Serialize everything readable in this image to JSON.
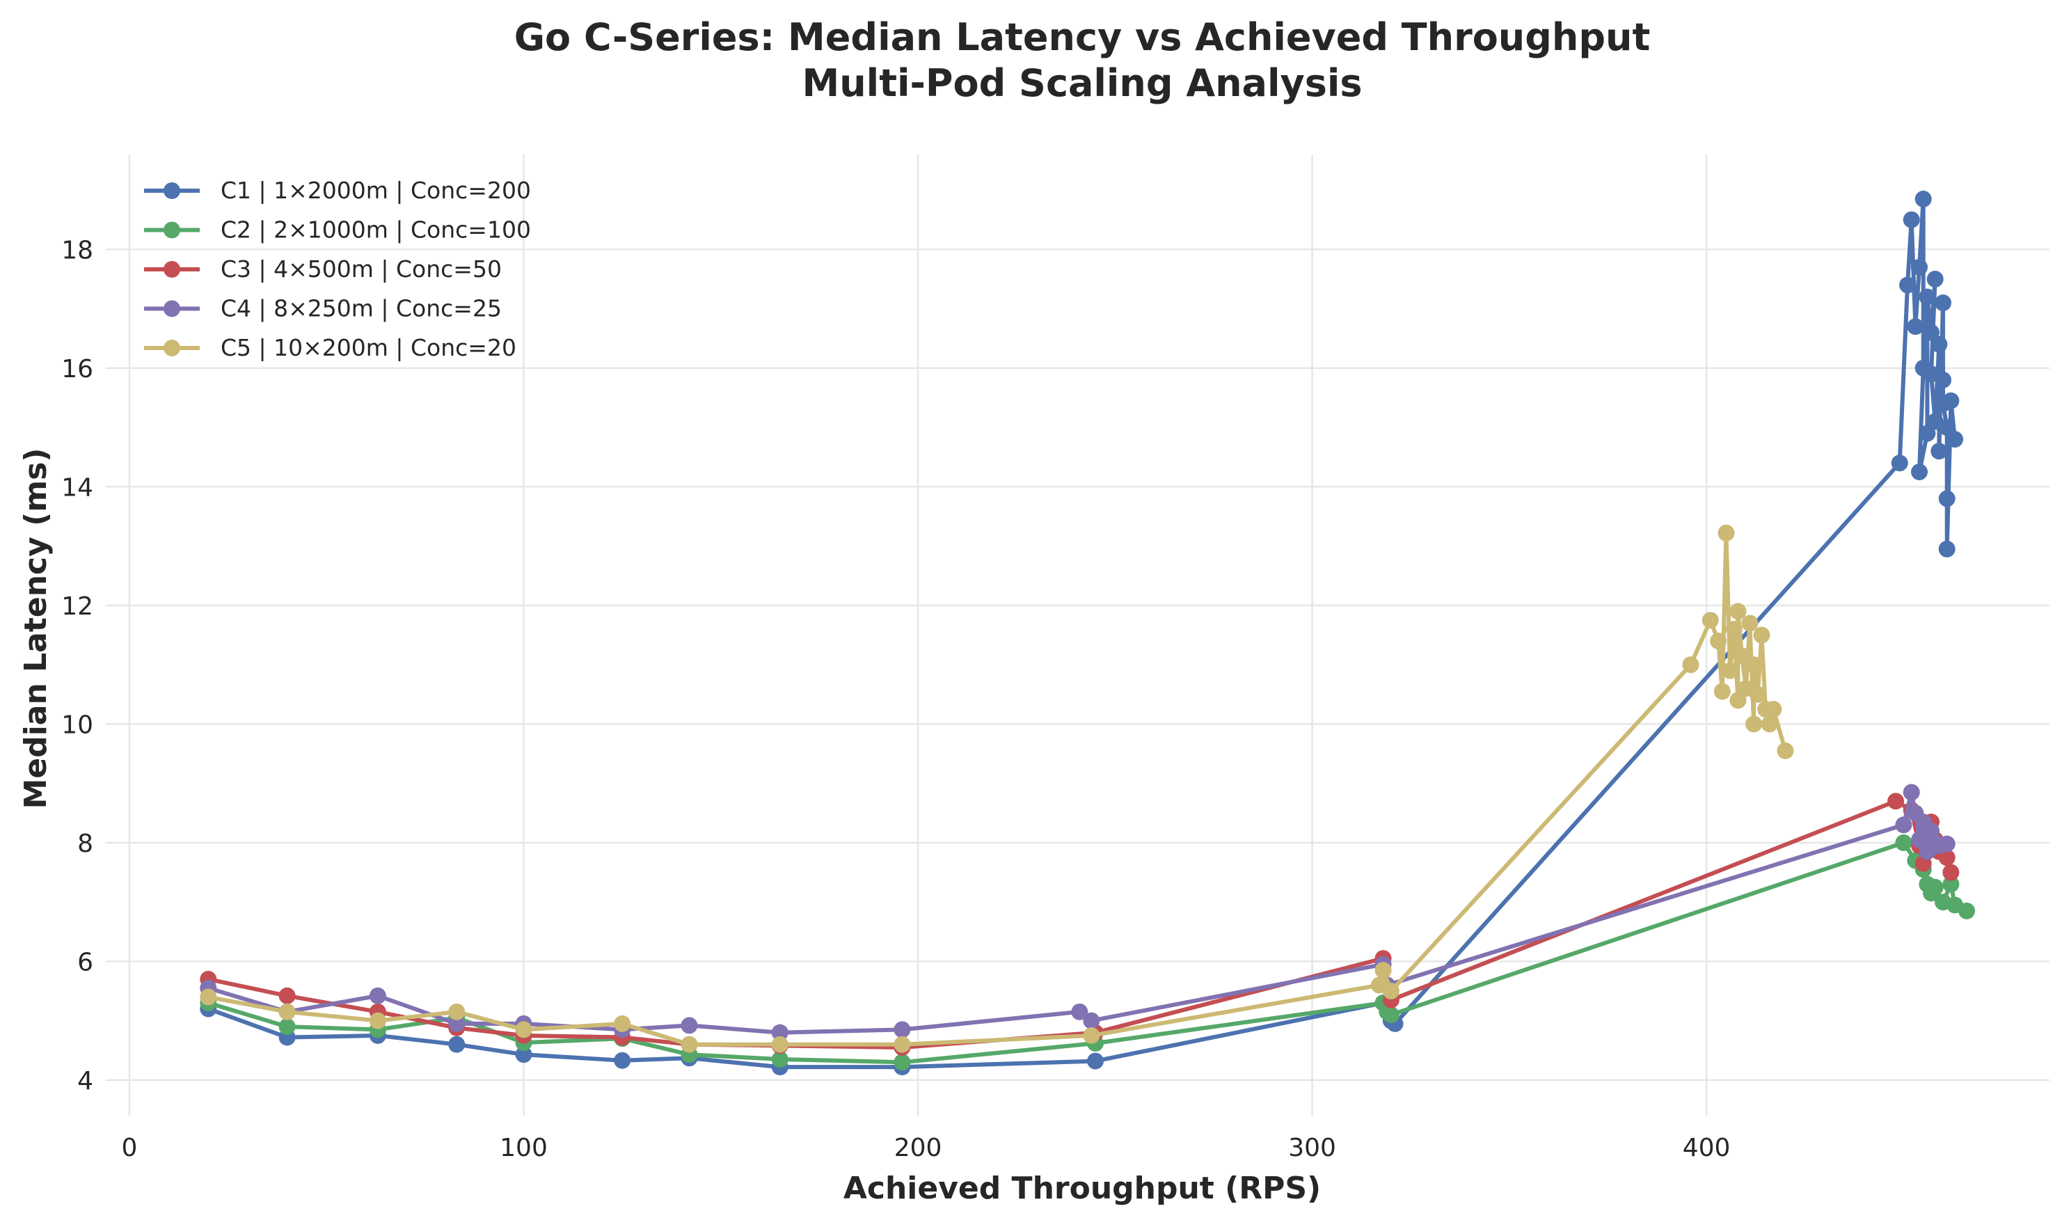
{
  "chart_data": {
    "type": "line",
    "title": "Go C-Series: Median Latency vs Achieved Throughput",
    "subtitle": "Multi-Pod Scaling Analysis",
    "xlabel": "Achieved Throughput (RPS)",
    "ylabel": "Median Latency (ms)",
    "xlim": [
      -6,
      487
    ],
    "ylim": [
      3.4,
      19.6
    ],
    "xticks": [
      0,
      100,
      200,
      300,
      400
    ],
    "yticks": [
      4,
      6,
      8,
      10,
      12,
      14,
      16,
      18
    ],
    "grid": true,
    "legend_position": "top-left",
    "series": [
      {
        "name": "C1 | 1×2000m | Conc=200",
        "color": "#4c72b0",
        "points": [
          [
            20,
            5.2
          ],
          [
            40,
            4.72
          ],
          [
            63,
            4.75
          ],
          [
            83,
            4.6
          ],
          [
            100,
            4.43
          ],
          [
            125,
            4.33
          ],
          [
            142,
            4.37
          ],
          [
            165,
            4.22
          ],
          [
            196,
            4.22
          ],
          [
            245,
            4.32
          ],
          [
            318,
            5.3
          ],
          [
            320,
            5.0
          ],
          [
            321,
            4.95
          ],
          [
            449,
            14.4
          ],
          [
            451,
            17.4
          ],
          [
            452,
            18.5
          ],
          [
            453,
            16.7
          ],
          [
            454,
            17.7
          ],
          [
            455,
            18.85
          ],
          [
            455,
            16.0
          ],
          [
            454,
            14.25
          ],
          [
            456,
            14.9
          ],
          [
            456,
            17.2
          ],
          [
            457,
            16.6
          ],
          [
            458,
            17.5
          ],
          [
            457,
            15.9
          ],
          [
            458,
            15.1
          ],
          [
            459,
            16.4
          ],
          [
            459,
            14.6
          ],
          [
            460,
            17.1
          ],
          [
            460,
            15.8
          ],
          [
            460,
            15.4
          ],
          [
            461,
            15.0
          ],
          [
            461,
            13.8
          ],
          [
            461,
            12.95
          ],
          [
            462,
            15.45
          ],
          [
            463,
            14.8
          ]
        ]
      },
      {
        "name": "C2 | 2×1000m | Conc=100",
        "color": "#55a868",
        "points": [
          [
            20,
            5.3
          ],
          [
            40,
            4.9
          ],
          [
            63,
            4.85
          ],
          [
            83,
            5.05
          ],
          [
            100,
            4.63
          ],
          [
            125,
            4.7
          ],
          [
            142,
            4.43
          ],
          [
            165,
            4.35
          ],
          [
            196,
            4.3
          ],
          [
            245,
            4.62
          ],
          [
            318,
            5.3
          ],
          [
            319,
            5.15
          ],
          [
            320,
            5.1
          ],
          [
            450,
            8.0
          ],
          [
            453,
            7.7
          ],
          [
            455,
            7.55
          ],
          [
            456,
            7.3
          ],
          [
            457,
            7.15
          ],
          [
            458,
            7.25
          ],
          [
            460,
            7.0
          ],
          [
            462,
            7.3
          ],
          [
            463,
            6.95
          ],
          [
            466,
            6.85
          ]
        ]
      },
      {
        "name": "C3 | 4×500m | Conc=50",
        "color": "#c44e52",
        "points": [
          [
            20,
            5.7
          ],
          [
            40,
            5.42
          ],
          [
            63,
            5.15
          ],
          [
            83,
            4.88
          ],
          [
            100,
            4.75
          ],
          [
            125,
            4.72
          ],
          [
            142,
            4.6
          ],
          [
            165,
            4.58
          ],
          [
            196,
            4.55
          ],
          [
            245,
            4.8
          ],
          [
            318,
            6.05
          ],
          [
            320,
            5.35
          ],
          [
            448,
            8.7
          ],
          [
            452,
            8.55
          ],
          [
            454,
            7.95
          ],
          [
            455,
            7.65
          ],
          [
            456,
            8.2
          ],
          [
            457,
            8.35
          ],
          [
            458,
            8.05
          ],
          [
            459,
            7.85
          ],
          [
            461,
            7.75
          ],
          [
            462,
            7.5
          ]
        ]
      },
      {
        "name": "C4 | 8×250m | Conc=25",
        "color": "#8172b2",
        "points": [
          [
            20,
            5.55
          ],
          [
            40,
            5.15
          ],
          [
            63,
            5.42
          ],
          [
            83,
            4.95
          ],
          [
            100,
            4.95
          ],
          [
            125,
            4.85
          ],
          [
            142,
            4.92
          ],
          [
            165,
            4.8
          ],
          [
            196,
            4.85
          ],
          [
            241,
            5.15
          ],
          [
            244,
            5.0
          ],
          [
            318,
            5.95
          ],
          [
            319,
            5.6
          ],
          [
            450,
            8.3
          ],
          [
            452,
            8.85
          ],
          [
            453,
            8.5
          ],
          [
            454,
            8.05
          ],
          [
            455,
            8.35
          ],
          [
            456,
            7.85
          ],
          [
            457,
            8.2
          ],
          [
            458,
            8.0
          ],
          [
            459,
            7.95
          ],
          [
            461,
            7.98
          ]
        ]
      },
      {
        "name": "C5 | 10×200m | Conc=20",
        "color": "#ccb974",
        "points": [
          [
            20,
            5.4
          ],
          [
            40,
            5.15
          ],
          [
            63,
            5.0
          ],
          [
            83,
            5.15
          ],
          [
            100,
            4.85
          ],
          [
            125,
            4.95
          ],
          [
            142,
            4.6
          ],
          [
            165,
            4.6
          ],
          [
            196,
            4.6
          ],
          [
            244,
            4.75
          ],
          [
            317,
            5.6
          ],
          [
            318,
            5.85
          ],
          [
            320,
            5.5
          ],
          [
            396,
            11.0
          ],
          [
            401,
            11.75
          ],
          [
            403,
            11.4
          ],
          [
            404,
            10.55
          ],
          [
            405,
            13.22
          ],
          [
            406,
            10.9
          ],
          [
            407,
            11.6
          ],
          [
            408,
            10.4
          ],
          [
            408,
            11.9
          ],
          [
            409,
            11.15
          ],
          [
            410,
            10.6
          ],
          [
            411,
            11.7
          ],
          [
            412,
            10.0
          ],
          [
            412,
            11.0
          ],
          [
            413,
            10.5
          ],
          [
            414,
            11.5
          ],
          [
            415,
            10.25
          ],
          [
            416,
            10.0
          ],
          [
            417,
            10.25
          ],
          [
            420,
            9.55
          ]
        ]
      }
    ]
  }
}
